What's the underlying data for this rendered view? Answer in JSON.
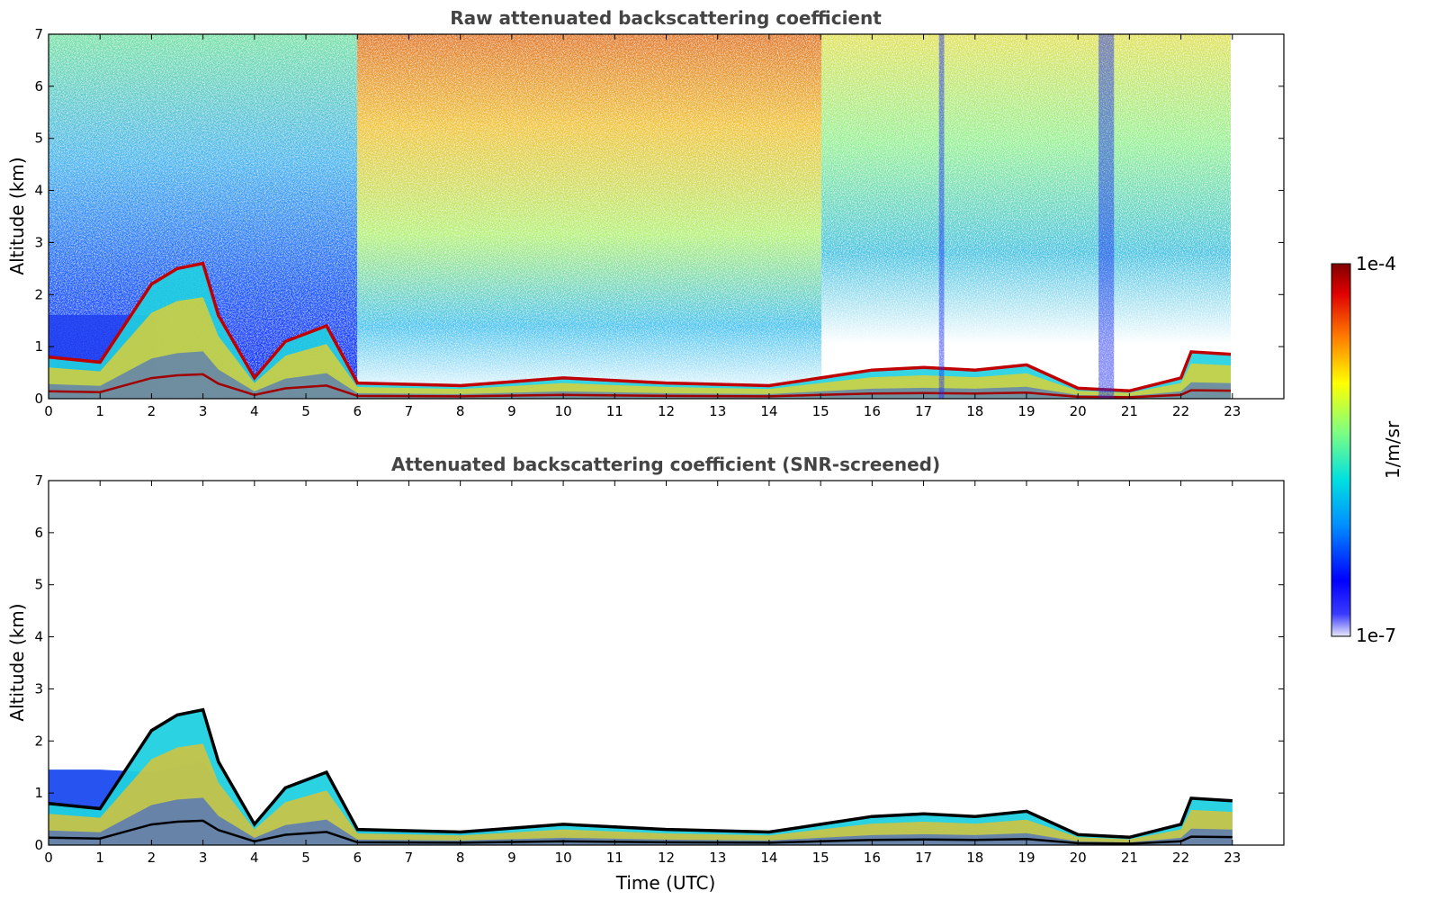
{
  "colors": {
    "colormap": [
      "#e8e8f8",
      "#0000ff",
      "#0090ff",
      "#00e0e0",
      "#80ff80",
      "#ffff00",
      "#ff8000",
      "#e00000",
      "#800000"
    ],
    "screen_line": "#000000"
  },
  "colorbar": {
    "label": "1/m/sr",
    "max_label": "1e-4",
    "min_label": "1e-7",
    "scale": "log",
    "range": [
      1e-07,
      0.0001
    ]
  },
  "chart_data": [
    {
      "type": "heatmap",
      "title": "Raw attenuated backscattering coefficient",
      "xlabel": "",
      "ylabel": "Altitude (km)",
      "xlim": [
        0,
        24
      ],
      "ylim": [
        0,
        7
      ],
      "data_end_hour": 23,
      "x_ticks": [
        "0",
        "1",
        "2",
        "3",
        "4",
        "5",
        "6",
        "7",
        "8",
        "9",
        "10",
        "11",
        "12",
        "13",
        "14",
        "15",
        "16",
        "17",
        "18",
        "19",
        "20",
        "21",
        "22",
        "23"
      ],
      "y_ticks": [
        "0",
        "1",
        "2",
        "3",
        "4",
        "5",
        "6",
        "7"
      ],
      "layer_top_km": [
        [
          0,
          0.8
        ],
        [
          1,
          0.7
        ],
        [
          2,
          2.2
        ],
        [
          2.5,
          2.5
        ],
        [
          3,
          2.6
        ],
        [
          3.3,
          1.6
        ],
        [
          4,
          0.4
        ],
        [
          4.6,
          1.1
        ],
        [
          5.4,
          1.4
        ],
        [
          6,
          0.3
        ],
        [
          8,
          0.25
        ],
        [
          10,
          0.4
        ],
        [
          12,
          0.3
        ],
        [
          14,
          0.25
        ],
        [
          15,
          0.4
        ],
        [
          16,
          0.55
        ],
        [
          17,
          0.6
        ],
        [
          18,
          0.55
        ],
        [
          19,
          0.65
        ],
        [
          20,
          0.2
        ],
        [
          21,
          0.15
        ],
        [
          22,
          0.4
        ],
        [
          22.2,
          0.9
        ],
        [
          23,
          0.85
        ]
      ],
      "dense_clouds": [
        {
          "start": 17.3,
          "end": 17.4
        },
        {
          "start": 20.4,
          "end": 20.7
        }
      ]
    },
    {
      "type": "heatmap",
      "title": "Attenuated backscattering coefficient (SNR-screened)",
      "xlabel": "Time (UTC)",
      "ylabel": "Altitude (km)",
      "xlim": [
        0,
        24
      ],
      "ylim": [
        0,
        7
      ],
      "data_end_hour": 23,
      "x_ticks": [
        "0",
        "1",
        "2",
        "3",
        "4",
        "5",
        "6",
        "7",
        "8",
        "9",
        "10",
        "11",
        "12",
        "13",
        "14",
        "15",
        "16",
        "17",
        "18",
        "19",
        "20",
        "21",
        "22",
        "23"
      ],
      "y_ticks": [
        "0",
        "1",
        "2",
        "3",
        "4",
        "5",
        "6",
        "7"
      ]
    }
  ]
}
